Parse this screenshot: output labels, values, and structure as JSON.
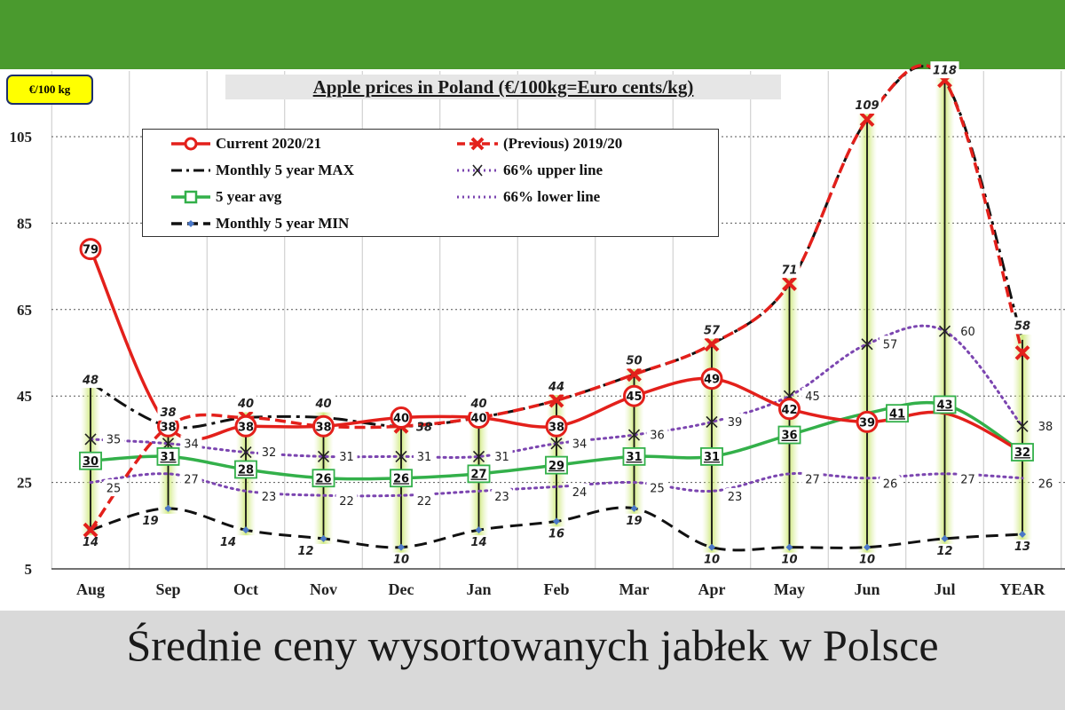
{
  "caption": "Średnie ceny wysortowanych jabłek w Polsce",
  "chart_data": {
    "type": "line",
    "title": "Apple prices in Poland (€/100kg=Euro cents/kg)",
    "unit_label": "€/100 kg",
    "categories": [
      "Aug",
      "Sep",
      "Oct",
      "Nov",
      "Dec",
      "Jan",
      "Feb",
      "Mar",
      "Apr",
      "May",
      "Jun",
      "Jul",
      "YEAR"
    ],
    "ylim": [
      5,
      118
    ],
    "yticks": [
      5,
      25,
      45,
      65,
      85,
      105
    ],
    "grid": true,
    "legend_position": "top-left",
    "series": [
      {
        "key": "current",
        "name": "Current 2020/21",
        "color": "#e3201b",
        "values": [
          79,
          38,
          38,
          38,
          40,
          40,
          38,
          45,
          49,
          42,
          39,
          41,
          32
        ],
        "labels": [
          "79",
          "38",
          "38",
          "38",
          "40",
          "40",
          "38",
          "45",
          "49",
          "42",
          "39",
          "",
          ""
        ]
      },
      {
        "key": "previous",
        "name": "(Previous) 2019/20",
        "color": "#e3201b",
        "values": [
          14,
          38,
          40,
          38,
          38,
          40,
          44,
          50,
          57,
          71,
          109,
          118,
          55
        ],
        "labels": [
          "",
          "",
          "",
          "",
          "38",
          "",
          "",
          "",
          "",
          "",
          "",
          "",
          ""
        ]
      },
      {
        "key": "max",
        "name": "Monthly 5 year MAX",
        "color": "#111111",
        "values": [
          48,
          38,
          40,
          40,
          38,
          40,
          44,
          50,
          57,
          71,
          109,
          118,
          58
        ],
        "labels": [
          "48",
          "38",
          "40",
          "40",
          "",
          "40",
          "44",
          "50",
          "57",
          "71",
          "109",
          "118",
          "58"
        ]
      },
      {
        "key": "upper",
        "name": "66% upper line",
        "color": "#7b45b0",
        "values": [
          35,
          34,
          32,
          31,
          31,
          31,
          34,
          36,
          39,
          45,
          57,
          60,
          38
        ],
        "labels": [
          "35",
          "34",
          "32",
          "31",
          "31",
          "31",
          "34",
          "36",
          "39",
          "45",
          "57",
          "60",
          "38"
        ]
      },
      {
        "key": "avg",
        "name": "5 year avg",
        "color": "#33b04a",
        "values": [
          30,
          31,
          28,
          26,
          26,
          27,
          29,
          31,
          31,
          36,
          41,
          43,
          32
        ],
        "labels": [
          "30",
          "31",
          "28",
          "26",
          "26",
          "27",
          "29",
          "31",
          "31",
          "36",
          "41",
          "43",
          "32"
        ]
      },
      {
        "key": "lower",
        "name": "66% lower line",
        "color": "#7b45b0",
        "values": [
          25,
          27,
          23,
          22,
          22,
          23,
          24,
          25,
          23,
          27,
          26,
          27,
          26
        ],
        "labels": [
          "25",
          "27",
          "23",
          "22",
          "22",
          "23",
          "24",
          "25",
          "23",
          "27",
          "26",
          "27",
          "26"
        ]
      },
      {
        "key": "min",
        "name": "Monthly 5 year MIN",
        "color": "#111111",
        "values": [
          14,
          19,
          14,
          12,
          10,
          14,
          16,
          19,
          10,
          10,
          10,
          12,
          13
        ],
        "labels": [
          "14",
          "19",
          "14",
          "12",
          "10",
          "14",
          "16",
          "19",
          "10",
          "10",
          "10",
          "12",
          "13"
        ]
      }
    ]
  }
}
